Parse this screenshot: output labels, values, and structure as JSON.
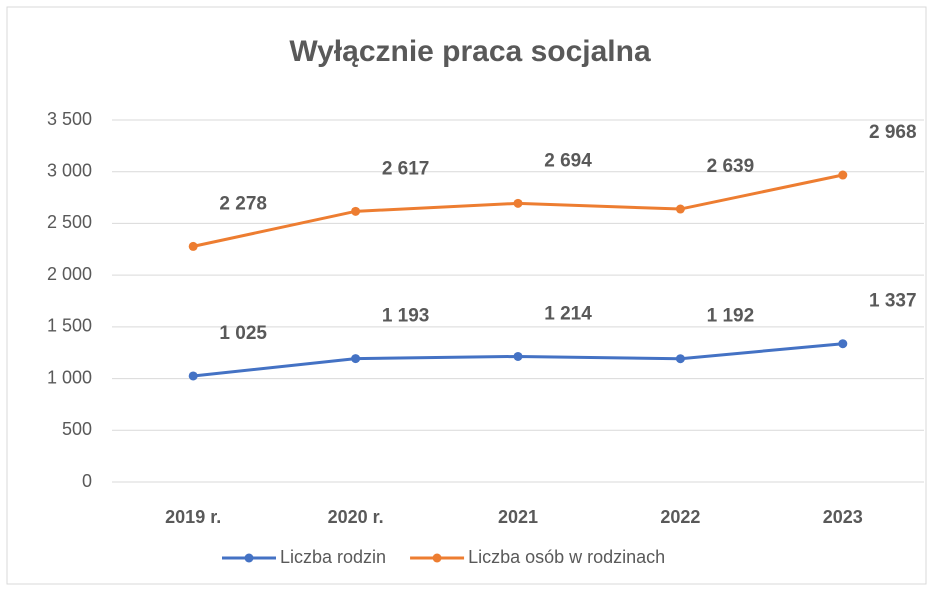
{
  "chart_data": {
    "type": "line",
    "title": "Wyłącznie praca socjalna",
    "categories": [
      "2019 r.",
      "2020 r.",
      "2021",
      "2022",
      "2023"
    ],
    "series": [
      {
        "name": "Liczba rodzin",
        "color": "#4472c4",
        "values": [
          1025,
          1193,
          1214,
          1192,
          1337
        ],
        "value_labels": [
          "1 025",
          "1 193",
          "1 214",
          "1 192",
          "1 337"
        ]
      },
      {
        "name": "Liczba osób w rodzinach",
        "color": "#ed7d31",
        "values": [
          2278,
          2617,
          2694,
          2639,
          2968
        ],
        "value_labels": [
          "2 278",
          "2 617",
          "2 694",
          "2 639",
          "2 968"
        ]
      }
    ],
    "ylim": [
      0,
      3500
    ],
    "yticks": [
      0,
      500,
      {
        "value": 1000,
        "label": "1 000"
      },
      {
        "value": 1500,
        "label": "1 500"
      },
      {
        "value": 2000,
        "label": "2 000"
      },
      {
        "value": 2500,
        "label": "2 500"
      },
      {
        "value": 3000,
        "label": "3 000"
      },
      {
        "value": 3500,
        "label": "3 500"
      }
    ],
    "grid": true,
    "legend": "bottom"
  }
}
